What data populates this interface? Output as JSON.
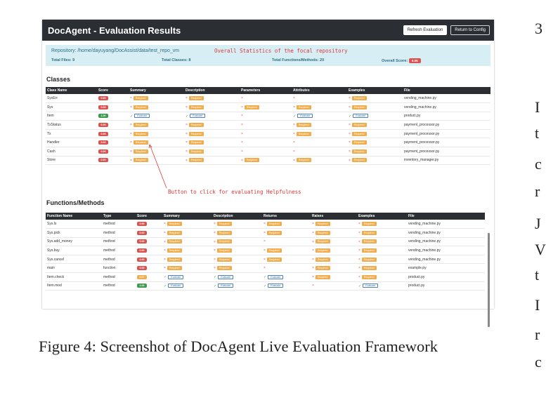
{
  "app": {
    "title": "DocAgent - Evaluation Results",
    "refresh_label": "Refresh Evaluation",
    "return_label": "Return to Config"
  },
  "repo": {
    "path": "Repository: /home/dayuyang/DocAssist/data/test_repo_vm",
    "total_files": "Total Files: 9",
    "total_classes": "Total Classes: 8",
    "total_functions": "Total Functions/Methods: 20",
    "overall_score_label": "Overall Score:",
    "overall_score": "0.05"
  },
  "annotations": {
    "overall": "Overall Statistics of the focal repository",
    "button": "Button to click for evaluating Helpfulness"
  },
  "classes": {
    "title": "Classes",
    "columns": [
      "Class Name",
      "Score",
      "Summary",
      "Description",
      "Parameters",
      "Attributes",
      "Examples",
      "File"
    ],
    "rows": [
      {
        "name": "SysErr",
        "score": "0.00",
        "score_color": "red",
        "cells": [
          "req",
          "req",
          "x",
          "x",
          "req"
        ],
        "file": "vending_machine.py"
      },
      {
        "name": "Sys",
        "score": "0.00",
        "score_color": "red",
        "cells": [
          "req",
          "req",
          "req",
          "req",
          "req"
        ],
        "file": "vending_machine.py"
      },
      {
        "name": "Item",
        "score": "1.00",
        "score_color": "green",
        "cells": [
          "eval",
          "eval",
          "x",
          "eval",
          "eval"
        ],
        "file": "product.py"
      },
      {
        "name": "TxStatus",
        "score": "0.00",
        "score_color": "red",
        "cells": [
          "req",
          "req",
          "x",
          "req",
          "req"
        ],
        "file": "payment_processor.py"
      },
      {
        "name": "Tx",
        "score": "0.00",
        "score_color": "red",
        "cells": [
          "req",
          "req",
          "x",
          "req",
          "req"
        ],
        "file": "payment_processor.py"
      },
      {
        "name": "Handler",
        "score": "0.00",
        "score_color": "red",
        "cells": [
          "req",
          "req",
          "x",
          "x",
          "req"
        ],
        "file": "payment_processor.py"
      },
      {
        "name": "Cash",
        "score": "0.00",
        "score_color": "red",
        "cells": [
          "req",
          "req",
          "x",
          "x",
          "req"
        ],
        "file": "payment_processor.py"
      },
      {
        "name": "Store",
        "score": "0.00",
        "score_color": "red",
        "cells": [
          "req",
          "req",
          "req",
          "req",
          "req"
        ],
        "file": "inventory_manager.py"
      }
    ]
  },
  "functions": {
    "title": "Functions/Methods",
    "columns": [
      "Function Name",
      "Type",
      "Score",
      "Summary",
      "Description",
      "Returns",
      "Raises",
      "Examples",
      "File"
    ],
    "rows": [
      {
        "name": "Sys.ls",
        "type": "method",
        "score": "0.00",
        "score_color": "red",
        "cells": [
          "req",
          "req",
          "req",
          "req",
          "req"
        ],
        "file": "vending_machine.py"
      },
      {
        "name": "Sys.pick",
        "type": "method",
        "score": "0.00",
        "score_color": "red",
        "cells": [
          "req",
          "req",
          "req",
          "req",
          "req"
        ],
        "file": "vending_machine.py"
      },
      {
        "name": "Sys.add_money",
        "type": "method",
        "score": "0.00",
        "score_color": "red",
        "cells": [
          "req",
          "req",
          "x",
          "req",
          "req"
        ],
        "file": "vending_machine.py"
      },
      {
        "name": "Sys.buy",
        "type": "method",
        "score": "0.00",
        "score_color": "red",
        "cells": [
          "req",
          "req",
          "req",
          "req",
          "req"
        ],
        "file": "vending_machine.py"
      },
      {
        "name": "Sys.cancel",
        "type": "method",
        "score": "0.00",
        "score_color": "red",
        "cells": [
          "req",
          "req",
          "req",
          "req",
          "req"
        ],
        "file": "vending_machine.py"
      },
      {
        "name": "main",
        "type": "function",
        "score": "0.00",
        "score_color": "red",
        "cells": [
          "req",
          "req",
          "x",
          "req",
          "req"
        ],
        "file": "example.py"
      },
      {
        "name": "Item.check",
        "type": "method",
        "score": "0.67",
        "score_color": "orange",
        "cells": [
          "eval",
          "eval",
          "eval",
          "req",
          "req"
        ],
        "file": "product.py"
      },
      {
        "name": "Item.mod",
        "type": "method",
        "score": "1.00",
        "score_color": "green",
        "cells": [
          "eval",
          "eval",
          "eval",
          "x",
          "eval"
        ],
        "file": "product.py"
      }
    ]
  },
  "labels": {
    "required": "Required",
    "evaluate": "Evaluate",
    "x_mark": "×",
    "check_mark": "✓"
  },
  "caption": "Figure 4:  Screenshot of DocAgent Live Evaluation Framework",
  "right_column": [
    "3",
    "I",
    "t",
    "c",
    "r",
    "J",
    "V",
    "t",
    "I",
    "r",
    "c"
  ],
  "colors": {
    "header": "#2b2f33",
    "required": "#f0ad4e",
    "score_red": "#d9534f",
    "score_green": "#3f9a4f",
    "repo_bg": "#d7eef5",
    "annotation": "#d93a3a"
  }
}
